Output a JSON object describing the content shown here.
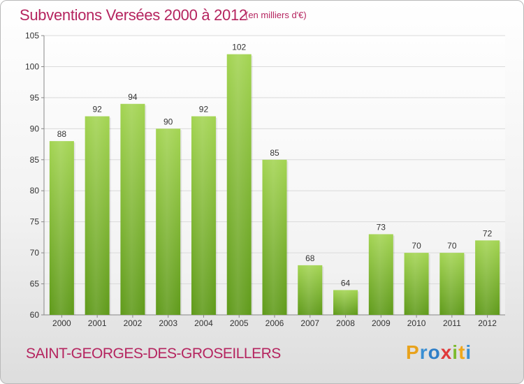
{
  "header": {
    "title": "Subventions Versées 2000 à 2012",
    "subtitle": "(en milliers d'€)"
  },
  "footer": {
    "commune": "SAINT-GEORGES-DES-GROSEILLERS",
    "logo_letters": [
      "P",
      "r",
      "o",
      "x",
      "i",
      "t",
      "i"
    ],
    "logo_colors": [
      "#e8a21c",
      "#3a8fd3",
      "#2f7fc8",
      "#e03a3a",
      "#7cbb2e",
      "#f0a81c",
      "#3a8fd3"
    ]
  },
  "chart_data": {
    "type": "bar",
    "title": "Subventions Versées 2000 à 2012",
    "xlabel": "",
    "ylabel": "",
    "categories": [
      "2000",
      "2001",
      "2002",
      "2003",
      "2004",
      "2005",
      "2006",
      "2007",
      "2008",
      "2009",
      "2010",
      "2011",
      "2012"
    ],
    "values": [
      88,
      92,
      94,
      90,
      92,
      102,
      85,
      68,
      64,
      73,
      70,
      70,
      72
    ],
    "ylim": [
      60,
      105
    ],
    "yticks": [
      60,
      65,
      70,
      75,
      80,
      85,
      90,
      95,
      100,
      105
    ],
    "grid": true,
    "bar_color_top": "#a3d452",
    "bar_color_bottom": "#5f9a1a"
  }
}
